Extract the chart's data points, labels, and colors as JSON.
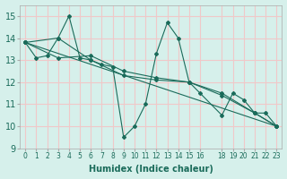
{
  "xlabel": "Humidex (Indice chaleur)",
  "background_color": "#d6f0eb",
  "grid_color": "#f0c8c8",
  "line_color": "#1a6b5a",
  "xlim": [
    -0.5,
    23.5
  ],
  "ylim": [
    9,
    15.5
  ],
  "yticks": [
    9,
    10,
    11,
    12,
    13,
    14,
    15
  ],
  "xtick_positions": [
    0,
    1,
    2,
    3,
    4,
    5,
    6,
    7,
    8,
    9,
    10,
    11,
    12,
    13,
    14,
    15,
    16,
    18,
    19,
    20,
    21,
    22,
    23
  ],
  "xtick_labels": [
    "0",
    "1",
    "2",
    "3",
    "4",
    "5",
    "6",
    "7",
    "8",
    "9",
    "10",
    "11",
    "12",
    "13",
    "14",
    "15",
    "16",
    "18",
    "19",
    "20",
    "21",
    "22",
    "23"
  ],
  "series": [
    {
      "x": [
        0,
        1,
        2,
        3,
        4,
        5,
        6,
        7,
        8,
        9,
        10,
        11,
        12,
        13,
        14,
        15,
        16,
        18,
        19,
        20,
        21,
        22,
        23
      ],
      "y": [
        13.8,
        13.1,
        13.2,
        14.0,
        15.0,
        13.1,
        13.0,
        12.8,
        12.7,
        9.5,
        10.0,
        11.0,
        13.3,
        14.7,
        14.0,
        12.0,
        11.5,
        10.5,
        11.5,
        11.2,
        10.6,
        10.6,
        10.0
      ]
    },
    {
      "x": [
        0,
        3,
        6,
        9,
        12,
        15,
        18,
        21,
        23
      ],
      "y": [
        13.8,
        14.0,
        13.0,
        12.3,
        12.1,
        12.0,
        11.5,
        10.6,
        10.0
      ]
    },
    {
      "x": [
        0,
        3,
        6,
        9,
        12,
        15,
        18,
        21,
        23
      ],
      "y": [
        13.8,
        13.1,
        13.2,
        12.5,
        12.2,
        12.0,
        11.4,
        10.6,
        10.0
      ]
    },
    {
      "x": [
        0,
        23
      ],
      "y": [
        13.8,
        10.0
      ]
    }
  ]
}
